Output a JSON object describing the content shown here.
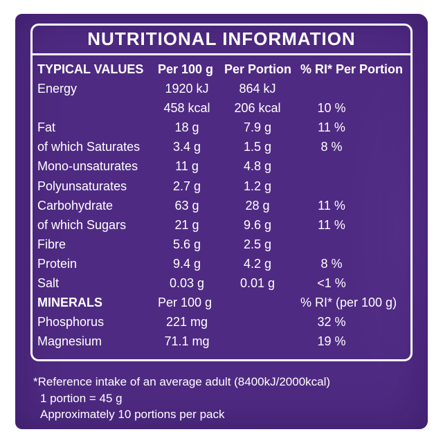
{
  "title": "NUTRITIONAL INFORMATION",
  "header": {
    "label": "TYPICAL VALUES",
    "per100": "Per 100 g",
    "perPortion": "Per Portion",
    "ri": "% RI* Per Portion"
  },
  "rows": [
    {
      "label": "Energy",
      "per100": "1920 kJ",
      "perPortion": "864 kJ",
      "ri": ""
    },
    {
      "label": "",
      "per100": "458 kcal",
      "perPortion": "206 kcal",
      "ri": "10 %"
    },
    {
      "label": "Fat",
      "per100": "18 g",
      "perPortion": "7.9 g",
      "ri": "11 %"
    },
    {
      "label": "of which Saturates",
      "per100": "3.4 g",
      "perPortion": "1.5 g",
      "ri": "8 %"
    },
    {
      "label": "Mono-unsaturates",
      "per100": "11 g",
      "perPortion": "4.8 g",
      "ri": ""
    },
    {
      "label": "Polyunsaturates",
      "per100": "2.7 g",
      "perPortion": "1.2 g",
      "ri": ""
    },
    {
      "label": "Carbohydrate",
      "per100": "63 g",
      "perPortion": "28 g",
      "ri": "11 %"
    },
    {
      "label": "of which Sugars",
      "per100": "21 g",
      "perPortion": "9.6 g",
      "ri": "11 %"
    },
    {
      "label": "Fibre",
      "per100": "5.6 g",
      "perPortion": "2.5 g",
      "ri": ""
    },
    {
      "label": "Protein",
      "per100": "9.4 g",
      "perPortion": "4.2 g",
      "ri": "8 %"
    },
    {
      "label": "Salt",
      "per100": "0.03 g",
      "perPortion": "0.01 g",
      "ri": "<1 %"
    }
  ],
  "minerals": {
    "label": "MINERALS",
    "per100": "Per 100 g",
    "ri": "% RI* (per 100 g)",
    "rows": [
      {
        "label": "Phosphorus",
        "per100": "221 mg",
        "ri": "32 %"
      },
      {
        "label": "Magnesium",
        "per100": "71.1 mg",
        "ri": "19 %"
      }
    ]
  },
  "footnote": {
    "line1": "*Reference intake of an average adult (8400kJ/2000kcal)",
    "line2": "1 portion = 45 g",
    "line3": "Approximately 10 portions per pack"
  },
  "colors": {
    "panel": "#4f2a82",
    "text": "#ffffff"
  }
}
